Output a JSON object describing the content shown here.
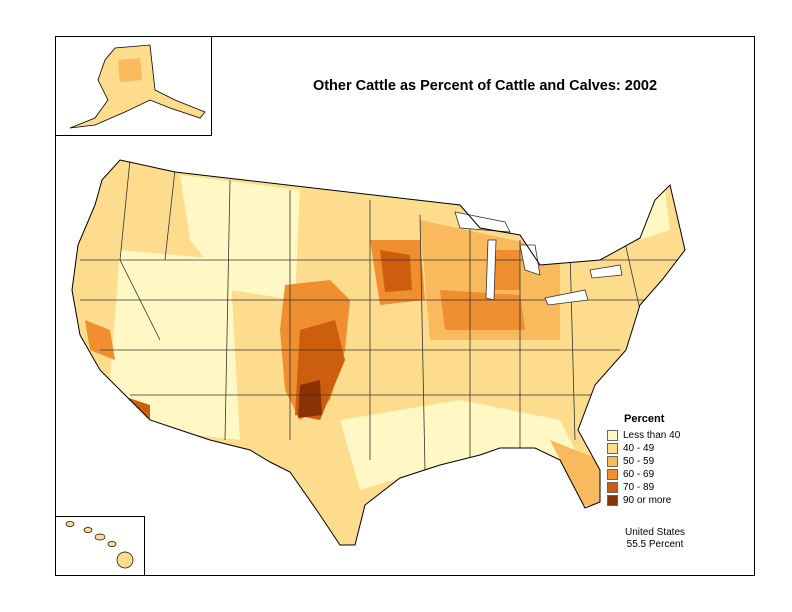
{
  "title": "Other Cattle as Percent of Cattle and Calves:  2002",
  "legend": {
    "title": "Percent",
    "classes": [
      {
        "label": "Less than 40",
        "color": "#fff8c4"
      },
      {
        "label": "40 - 49",
        "color": "#fddc8e"
      },
      {
        "label": "50 - 59",
        "color": "#f9b95d"
      },
      {
        "label": "60 - 69",
        "color": "#f08f30"
      },
      {
        "label": "70 - 89",
        "color": "#cc5e0e"
      },
      {
        "label": "90 or more",
        "color": "#8a3206"
      }
    ]
  },
  "summary": {
    "line1": "United States",
    "line2": "55.5 Percent"
  }
}
